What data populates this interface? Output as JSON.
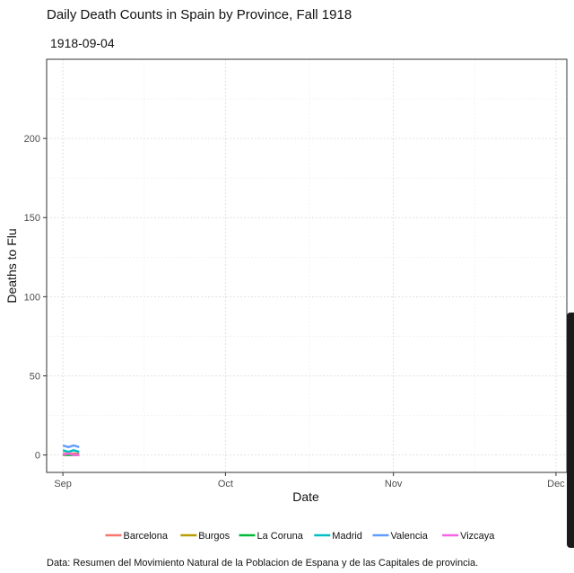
{
  "chart_data": {
    "type": "line",
    "title": "Daily Death Counts in Spain by Province, Fall 1918",
    "subtitle": "1918-09-04",
    "xlabel": "Date",
    "ylabel": "Deaths to Flu",
    "caption": "Data: Resumen del Movimiento Natural de la Poblacion de Espana y de las Capitales de provincia.",
    "xlim": [
      "1918-08-29",
      "1918-12-03"
    ],
    "ylim": [
      -11,
      250
    ],
    "x_ticks": [
      {
        "date": "1918-09-01",
        "label": "Sep"
      },
      {
        "date": "1918-10-01",
        "label": "Oct"
      },
      {
        "date": "1918-11-01",
        "label": "Nov"
      },
      {
        "date": "1918-12-01",
        "label": "Dec"
      }
    ],
    "y_ticks": [
      0,
      50,
      100,
      150,
      200
    ],
    "grid": true,
    "legend_position": "bottom",
    "series": [
      {
        "name": "Barcelona",
        "color": "#F8766D",
        "x": [
          "1918-09-01",
          "1918-09-02",
          "1918-09-03",
          "1918-09-04"
        ],
        "values": [
          1,
          1,
          1,
          1
        ]
      },
      {
        "name": "Burgos",
        "color": "#B79F00",
        "x": [
          "1918-09-01",
          "1918-09-02",
          "1918-09-03",
          "1918-09-04"
        ],
        "values": [
          0,
          0,
          0,
          0
        ]
      },
      {
        "name": "La Coruna",
        "color": "#00BA38",
        "x": [
          "1918-09-01",
          "1918-09-02",
          "1918-09-03",
          "1918-09-04"
        ],
        "values": [
          0,
          0,
          0,
          0
        ]
      },
      {
        "name": "Madrid",
        "color": "#00BFC4",
        "x": [
          "1918-09-01",
          "1918-09-02",
          "1918-09-03",
          "1918-09-04"
        ],
        "values": [
          3,
          2,
          3,
          2
        ]
      },
      {
        "name": "Valencia",
        "color": "#619CFF",
        "x": [
          "1918-09-01",
          "1918-09-02",
          "1918-09-03",
          "1918-09-04"
        ],
        "values": [
          6,
          5,
          6,
          5
        ]
      },
      {
        "name": "Vizcaya",
        "color": "#F564E3",
        "x": [
          "1918-09-01",
          "1918-09-02",
          "1918-09-03",
          "1918-09-04"
        ],
        "values": [
          0,
          1,
          0,
          0
        ]
      }
    ]
  }
}
